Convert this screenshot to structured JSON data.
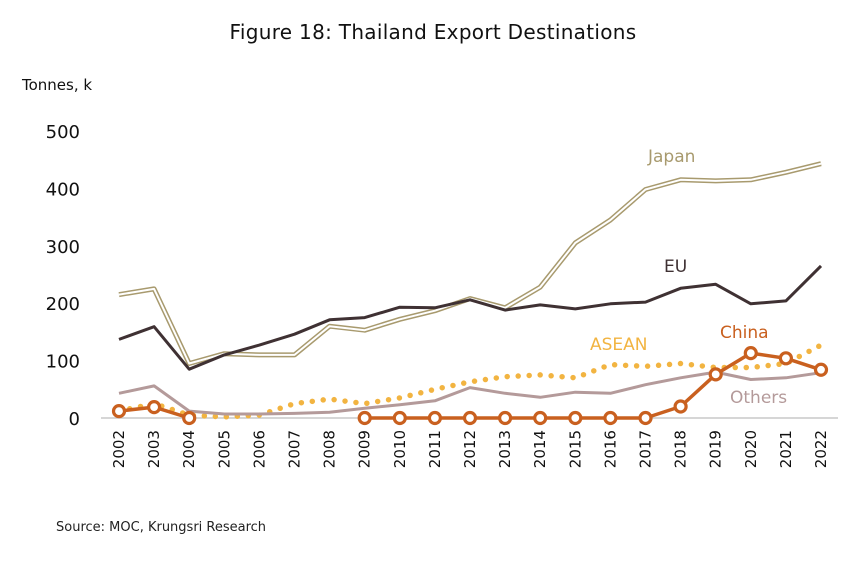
{
  "title": "Figure 18: Thailand Export Destinations",
  "unit_label": "Tonnes, k",
  "source": "Source: MOC, Krungsri Research",
  "chart_data": {
    "type": "line",
    "title": "Figure 18: Thailand Export Destinations",
    "ylabel": "Tonnes, k",
    "xlabel": "",
    "ylim": [
      0,
      500
    ],
    "yticks": [
      0,
      100,
      200,
      300,
      400,
      500
    ],
    "x": [
      "2002",
      "2003",
      "2004",
      "2005",
      "2006",
      "2007",
      "2008",
      "2009",
      "2010",
      "2011",
      "2012",
      "2013",
      "2014",
      "2015",
      "2016",
      "2017",
      "2018",
      "2019",
      "2020",
      "2021",
      "2022"
    ],
    "grid": false,
    "legend": "inline labels",
    "series": [
      {
        "name": "Japan",
        "color": "#a89a6e",
        "style": "double",
        "values": [
          215,
          225,
          95,
          112,
          110,
          110,
          160,
          153,
          172,
          187,
          208,
          192,
          228,
          305,
          345,
          398,
          415,
          413,
          415,
          428,
          443
        ]
      },
      {
        "name": "EU",
        "color": "#3f3133",
        "style": "solid",
        "values": [
          137,
          159,
          85,
          110,
          127,
          146,
          171,
          175,
          193,
          192,
          206,
          188,
          197,
          190,
          199,
          202,
          226,
          233,
          199,
          204,
          265
        ]
      },
      {
        "name": "ASEAN",
        "color": "#f2b441",
        "style": "dotted",
        "values": [
          12,
          25,
          5,
          2,
          5,
          25,
          33,
          25,
          35,
          50,
          63,
          72,
          75,
          70,
          93,
          90,
          95,
          88,
          88,
          95,
          127
        ]
      },
      {
        "name": "Others",
        "color": "#b49a9a",
        "style": "solid",
        "values": [
          43,
          56,
          12,
          7,
          7,
          8,
          10,
          17,
          23,
          30,
          53,
          43,
          36,
          45,
          43,
          58,
          70,
          80,
          67,
          70,
          79
        ]
      },
      {
        "name": "China",
        "color": "#c9601f",
        "style": "marker",
        "values": [
          12,
          19,
          0,
          null,
          null,
          null,
          null,
          0,
          0,
          0,
          0,
          0,
          0,
          0,
          0,
          0,
          20,
          76,
          113,
          104,
          84
        ]
      }
    ]
  },
  "colors": {
    "axis": "#bdbdbd"
  }
}
